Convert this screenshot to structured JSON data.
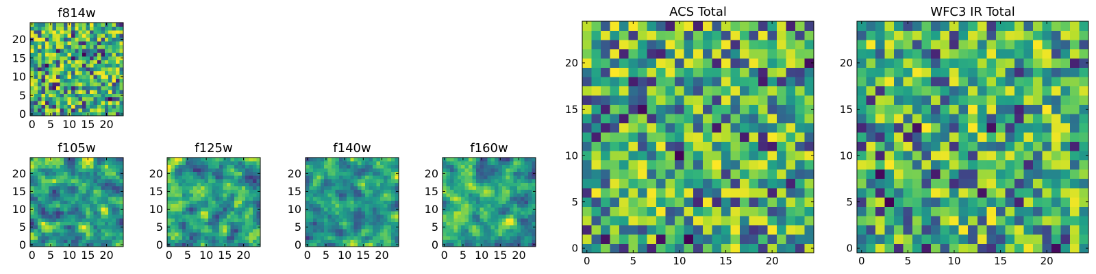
{
  "chart_data": [
    {
      "type": "heatmap",
      "title": "f814w",
      "grid": [
        25,
        25
      ],
      "xlim": [
        -0.5,
        24.5
      ],
      "ylim": [
        -0.5,
        24.5
      ],
      "xticks": [
        0,
        5,
        10,
        15,
        20
      ],
      "yticks": [
        0,
        5,
        10,
        15,
        20
      ],
      "colormap": "viridis",
      "pattern": "pixel-noise",
      "seed": 11
    },
    {
      "type": "heatmap",
      "title": "f105w",
      "grid": [
        25,
        25
      ],
      "xlim": [
        -0.5,
        24.5
      ],
      "ylim": [
        -0.5,
        24.5
      ],
      "xticks": [
        0,
        5,
        10,
        15,
        20
      ],
      "yticks": [
        0,
        5,
        10,
        15,
        20
      ],
      "colormap": "viridis",
      "pattern": "smooth-noise",
      "seed": 23
    },
    {
      "type": "heatmap",
      "title": "f125w",
      "grid": [
        25,
        25
      ],
      "xlim": [
        -0.5,
        24.5
      ],
      "ylim": [
        -0.5,
        24.5
      ],
      "xticks": [
        0,
        5,
        10,
        15,
        20
      ],
      "yticks": [
        0,
        5,
        10,
        15,
        20
      ],
      "colormap": "viridis",
      "pattern": "smooth-noise",
      "seed": 37
    },
    {
      "type": "heatmap",
      "title": "f140w",
      "grid": [
        25,
        25
      ],
      "xlim": [
        -0.5,
        24.5
      ],
      "ylim": [
        -0.5,
        24.5
      ],
      "xticks": [
        0,
        5,
        10,
        15,
        20
      ],
      "yticks": [
        0,
        5,
        10,
        15,
        20
      ],
      "colormap": "viridis",
      "pattern": "smooth-noise",
      "seed": 41
    },
    {
      "type": "heatmap",
      "title": "f160w",
      "grid": [
        25,
        25
      ],
      "xlim": [
        -0.5,
        24.5
      ],
      "ylim": [
        -0.5,
        24.5
      ],
      "xticks": [
        0,
        5,
        10,
        15,
        20
      ],
      "yticks": [
        0,
        5,
        10,
        15,
        20
      ],
      "colormap": "viridis",
      "pattern": "smooth-noise",
      "seed": 53
    },
    {
      "type": "heatmap",
      "title": "ACS Total",
      "grid": [
        25,
        25
      ],
      "xlim": [
        -0.5,
        24.5
      ],
      "ylim": [
        -0.5,
        24.5
      ],
      "xticks": [
        0,
        5,
        10,
        15,
        20
      ],
      "yticks": [
        0,
        5,
        10,
        15,
        20
      ],
      "colormap": "viridis",
      "pattern": "pixel-noise",
      "seed": 67
    },
    {
      "type": "heatmap",
      "title": "WFC3 IR Total",
      "grid": [
        25,
        25
      ],
      "xlim": [
        -0.5,
        24.5
      ],
      "ylim": [
        -0.5,
        24.5
      ],
      "xticks": [
        0,
        5,
        10,
        15,
        20
      ],
      "yticks": [
        0,
        5,
        10,
        15,
        20
      ],
      "colormap": "viridis",
      "pattern": "pixel-noise",
      "seed": 79
    }
  ]
}
